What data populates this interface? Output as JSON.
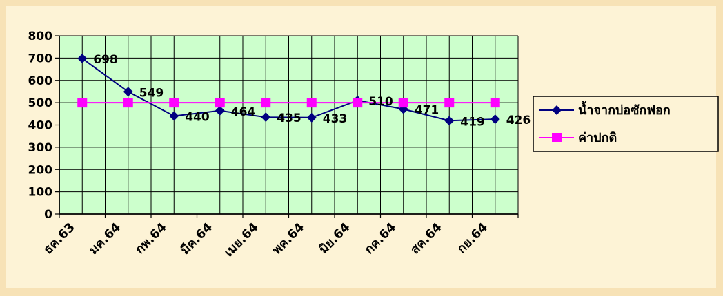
{
  "chart_data": {
    "type": "line",
    "categories": [
      "ธค.63",
      "มค.64",
      "กพ.64",
      "มีค.64",
      "เมย.64",
      "พค.64",
      "มิย.64",
      "กค.64",
      "สค.64",
      "กย.64"
    ],
    "ylim": [
      0,
      800
    ],
    "yticks": [
      0,
      100,
      200,
      300,
      400,
      500,
      600,
      700,
      800
    ],
    "grid": true,
    "legend_position": "right",
    "series": [
      {
        "name": "น้ำจากบ่อซักฟอก",
        "values": [
          698,
          549,
          440,
          464,
          435,
          433,
          510,
          471,
          419,
          426
        ],
        "data_labels": [
          "698",
          "549",
          "440",
          "464",
          "435",
          "433",
          "510",
          "471",
          "419",
          "426"
        ],
        "color": "#000080",
        "marker": "diamond"
      },
      {
        "name": "ค่าปกติ",
        "values": [
          500,
          500,
          500,
          500,
          500,
          500,
          500,
          500,
          500,
          500
        ],
        "color": "#ff00ff",
        "marker": "square"
      }
    ]
  },
  "colors": {
    "page_background": "#f7e2b6",
    "panel_background": "#fdf3d6",
    "plot_background": "#ccffcc",
    "grid": "#000000",
    "text": "#000000"
  }
}
